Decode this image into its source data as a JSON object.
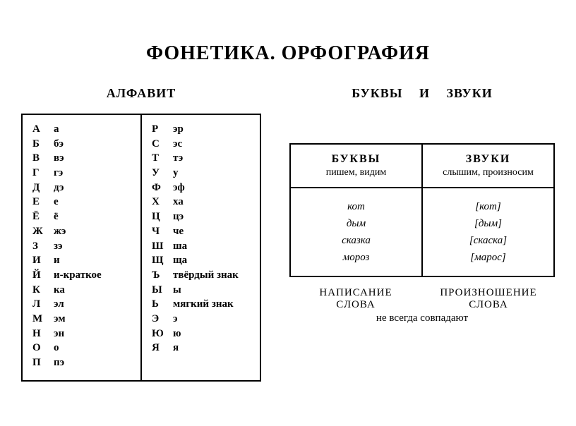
{
  "title": "ФОНЕТИКА. ОРФОГРАФИЯ",
  "left": {
    "title": "АЛФАВИТ",
    "col1": [
      {
        "l": "А",
        "n": "а"
      },
      {
        "l": "Б",
        "n": "бэ"
      },
      {
        "l": "В",
        "n": "вэ"
      },
      {
        "l": "Г",
        "n": "гэ"
      },
      {
        "l": "Д",
        "n": "дэ"
      },
      {
        "l": "Е",
        "n": "е"
      },
      {
        "l": "Ё",
        "n": "ё"
      },
      {
        "l": "Ж",
        "n": "жэ"
      },
      {
        "l": "З",
        "n": "зэ"
      },
      {
        "l": "И",
        "n": "и"
      },
      {
        "l": "Й",
        "n": "и-краткое"
      },
      {
        "l": "К",
        "n": "ка"
      },
      {
        "l": "Л",
        "n": "эл"
      },
      {
        "l": "М",
        "n": "эм"
      },
      {
        "l": "Н",
        "n": "эн"
      },
      {
        "l": "О",
        "n": "о"
      },
      {
        "l": "П",
        "n": "пэ"
      }
    ],
    "col2": [
      {
        "l": "Р",
        "n": "эр"
      },
      {
        "l": "С",
        "n": "эс"
      },
      {
        "l": "Т",
        "n": "тэ"
      },
      {
        "l": "У",
        "n": "у"
      },
      {
        "l": "Ф",
        "n": "эф"
      },
      {
        "l": "Х",
        "n": "ха"
      },
      {
        "l": "Ц",
        "n": "цэ"
      },
      {
        "l": "Ч",
        "n": "че"
      },
      {
        "l": "Ш",
        "n": "ша"
      },
      {
        "l": "Щ",
        "n": "ща"
      },
      {
        "l": "Ъ",
        "n": "твёрдый знак"
      },
      {
        "l": "Ы",
        "n": "ы"
      },
      {
        "l": "Ь",
        "n": "мягкий знак"
      },
      {
        "l": "Э",
        "n": "э"
      },
      {
        "l": "Ю",
        "n": "ю"
      },
      {
        "l": "Я",
        "n": "я"
      }
    ]
  },
  "right": {
    "title": "БУКВЫ И ЗВУКИ",
    "table": {
      "head1": "БУКВЫ",
      "sub1": "пишем, видим",
      "head2": "ЗВУКИ",
      "sub2": "слышим, произносим",
      "words": [
        "кот",
        "дым",
        "сказка",
        "мороз"
      ],
      "sounds": [
        "[кот]",
        "[дым]",
        "[скаска]",
        "[марос]"
      ]
    },
    "caption": {
      "left1": "НАПИСАНИЕ",
      "left2": "СЛОВА",
      "right1": "ПРОИЗНОШЕНИЕ",
      "right2": "СЛОВА",
      "bottom": "не всегда совпадают"
    }
  }
}
